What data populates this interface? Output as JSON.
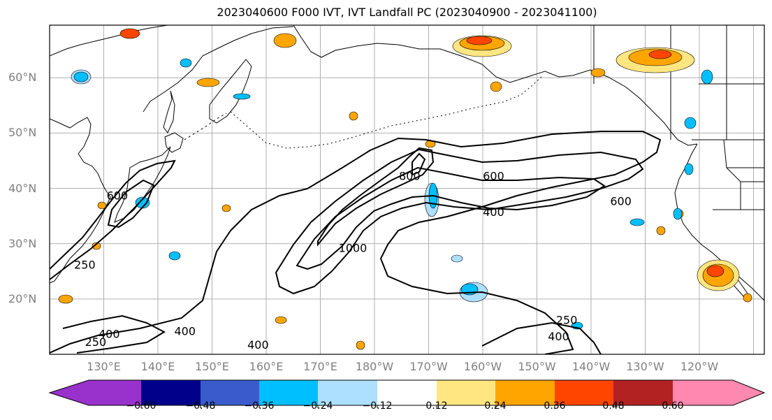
{
  "title": "2023040600 F000 IVT, IVT Landfall PC (2023040900 - 2023041100)",
  "lat_labels": [
    {
      "lat": 60,
      "text": "60°N"
    },
    {
      "lat": 50,
      "text": "50°N"
    },
    {
      "lat": 40,
      "text": "40°N"
    },
    {
      "lat": 30,
      "text": "30°N"
    },
    {
      "lat": 20,
      "text": "20°N"
    }
  ],
  "lon_labels": [
    {
      "lon": 130,
      "text": "130°E"
    },
    {
      "lon": 140,
      "text": "140°E"
    },
    {
      "lon": 150,
      "text": "150°E"
    },
    {
      "lon": 160,
      "text": "160°E"
    },
    {
      "lon": 170,
      "text": "170°E"
    },
    {
      "lon": 180,
      "text": "180°W"
    },
    {
      "lon": 190,
      "text": "170°W"
    },
    {
      "lon": 200,
      "text": "160°W"
    },
    {
      "lon": 210,
      "text": "150°W"
    },
    {
      "lon": 220,
      "text": "140°W"
    },
    {
      "lon": 230,
      "text": "130°W"
    },
    {
      "lon": 240,
      "text": "120°W"
    }
  ],
  "colorbar": {
    "colors": [
      "#9932CC",
      "#00008B",
      "#3A5BCC",
      "#00BFFF",
      "#ADDFFF",
      "#FFFFFF",
      "#FFE680",
      "#FFA500",
      "#FF4500",
      "#B22222",
      "#FF88B0"
    ],
    "ticks": [
      "−0.60",
      "−0.48",
      "−0.36",
      "−0.24",
      "−0.12",
      "0.12",
      "0.24",
      "0.36",
      "0.48",
      "0.60"
    ],
    "under_color": "#9932CC",
    "over_color": "#FF88B0"
  },
  "contour_labels": [
    {
      "text": "600",
      "lat": 38.0,
      "lon": 132.5
    },
    {
      "text": "250",
      "lat": 25.5,
      "lon": 126.5
    },
    {
      "text": "400",
      "lat": 13.0,
      "lon": 131.0
    },
    {
      "text": "250",
      "lat": 11.5,
      "lon": 128.5
    },
    {
      "text": "400",
      "lat": 13.5,
      "lon": 145.0
    },
    {
      "text": "400",
      "lat": 11.0,
      "lon": 158.5
    },
    {
      "text": "600",
      "lat": 41.5,
      "lon": 202.0
    },
    {
      "text": "400",
      "lat": 35.0,
      "lon": 202.0
    },
    {
      "text": "600",
      "lat": 37.0,
      "lon": 225.5
    },
    {
      "text": "250",
      "lat": 15.5,
      "lon": 215.5
    },
    {
      "text": "400",
      "lat": 12.5,
      "lon": 214.0
    },
    {
      "text": "800",
      "lat": 41.5,
      "lon": 186.5
    },
    {
      "text": "1000",
      "lat": 28.5,
      "lon": 176.0
    }
  ]
}
